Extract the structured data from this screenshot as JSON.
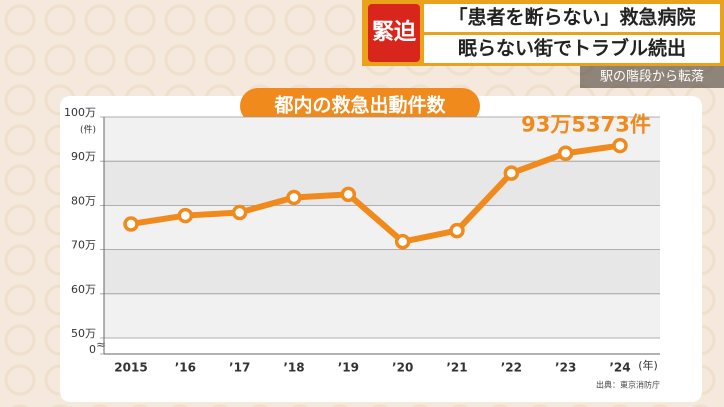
{
  "header": {
    "badge": "緊迫",
    "line1": "「患者を断らない」救急病院",
    "line2": "眠らない街でトラブル続出",
    "caption": "駅の階段から転落"
  },
  "chart_data": {
    "type": "line",
    "title": "都内の救急出動件数",
    "categories": [
      "2015",
      "’16",
      "’17",
      "’18",
      "’19",
      "’20",
      "’21",
      "’22",
      "’23",
      "’24"
    ],
    "x_unit": "(年)",
    "y_unit": "(件)",
    "series": [
      {
        "name": "救急出動件数",
        "color": "#f08a1c",
        "values": [
          75.8,
          77.7,
          78.4,
          81.8,
          82.5,
          71.8,
          74.3,
          87.3,
          91.8,
          93.5373
        ],
        "value_labels": [
          null,
          null,
          null,
          null,
          null,
          null,
          null,
          null,
          null,
          "93万5373件"
        ]
      }
    ],
    "ylim": [
      50,
      100
    ],
    "yticks": [
      0,
      {
        "value": 50,
        "label": "50万"
      },
      {
        "value": 60,
        "label": "60万"
      },
      {
        "value": 70,
        "label": "70万"
      },
      {
        "value": 80,
        "label": "80万"
      },
      {
        "value": 90,
        "label": "90万"
      },
      {
        "value": 100,
        "label": "100万"
      }
    ],
    "grid": true,
    "source": "出典：東京消防庁"
  }
}
